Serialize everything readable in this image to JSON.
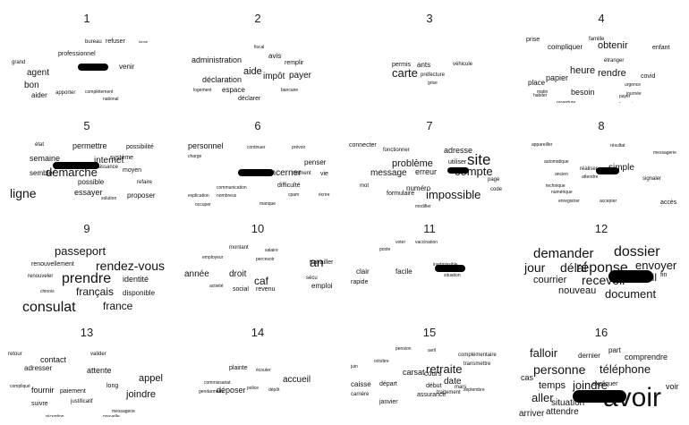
{
  "panels": [
    {
      "number": "1",
      "words": [
        {
          "t": "refuser",
          "s": 7
        },
        {
          "t": "bureau",
          "s": 6
        },
        {
          "t": "professionnel",
          "s": 7
        },
        {
          "t": "venir",
          "s": 8
        },
        {
          "t": "grand",
          "s": 6
        },
        {
          "t": "agent",
          "s": 10
        },
        {
          "t": "bon",
          "s": 10
        },
        {
          "t": "aider",
          "s": 8
        },
        {
          "t": "apporter",
          "s": 6
        },
        {
          "t": "complètement",
          "s": 5
        },
        {
          "t": "forme",
          "s": 4
        },
        {
          "t": "national",
          "s": 5
        }
      ]
    },
    {
      "number": "2",
      "words": [
        {
          "t": "administration",
          "s": 9
        },
        {
          "t": "avis",
          "s": 8
        },
        {
          "t": "remplir",
          "s": 7
        },
        {
          "t": "aide",
          "s": 11
        },
        {
          "t": "impôt",
          "s": 10
        },
        {
          "t": "payer",
          "s": 10
        },
        {
          "t": "déclaration",
          "s": 9
        },
        {
          "t": "espace",
          "s": 8
        },
        {
          "t": "déclarer",
          "s": 7
        },
        {
          "t": "logement",
          "s": 5
        },
        {
          "t": "bancaire",
          "s": 5
        },
        {
          "t": "fiscal",
          "s": 5
        }
      ]
    },
    {
      "number": "3",
      "words": [
        {
          "t": "permis",
          "s": 7
        },
        {
          "t": "ants",
          "s": 8
        },
        {
          "t": "véhicule",
          "s": 6
        },
        {
          "t": "carte",
          "s": 13
        },
        {
          "t": "préfecture",
          "s": 6
        },
        {
          "t": "grise",
          "s": 5
        }
      ]
    },
    {
      "number": "4",
      "words": [
        {
          "t": "prise",
          "s": 7
        },
        {
          "t": "famille",
          "s": 6
        },
        {
          "t": "compliquer",
          "s": 8
        },
        {
          "t": "obtenir",
          "s": 11
        },
        {
          "t": "enfant",
          "s": 7
        },
        {
          "t": "papier",
          "s": 9
        },
        {
          "t": "heure",
          "s": 11
        },
        {
          "t": "rendre",
          "s": 11
        },
        {
          "t": "covid",
          "s": 7
        },
        {
          "t": "place",
          "s": 8
        },
        {
          "t": "besoin",
          "s": 9
        },
        {
          "t": "urgence",
          "s": 5
        },
        {
          "t": "étranger",
          "s": 6
        },
        {
          "t": "payer",
          "s": 5
        },
        {
          "t": "journée",
          "s": 5
        },
        {
          "t": "ouverture",
          "s": 5
        },
        {
          "t": "matin",
          "s": 5
        },
        {
          "t": "habiter",
          "s": 5
        },
        {
          "t": "français",
          "s": 5
        }
      ]
    },
    {
      "number": "5",
      "words": [
        {
          "t": "état",
          "s": 6
        },
        {
          "t": "permettre",
          "s": 9
        },
        {
          "t": "possibilité",
          "s": 7
        },
        {
          "t": "semaine",
          "s": 9
        },
        {
          "t": "internet",
          "s": 10
        },
        {
          "t": "système",
          "s": 7
        },
        {
          "t": "démarche",
          "s": 13
        },
        {
          "t": "naissance",
          "s": 6
        },
        {
          "t": "moyen",
          "s": 7
        },
        {
          "t": "sembler",
          "s": 8
        },
        {
          "t": "ligne",
          "s": 14
        },
        {
          "t": "possible",
          "s": 8
        },
        {
          "t": "refaire",
          "s": 6
        },
        {
          "t": "essayer",
          "s": 9
        },
        {
          "t": "proposer",
          "s": 8
        },
        {
          "t": "solution",
          "s": 5
        }
      ]
    },
    {
      "number": "6",
      "words": [
        {
          "t": "personnel",
          "s": 9
        },
        {
          "t": "continuer",
          "s": 5
        },
        {
          "t": "prévoir",
          "s": 5
        },
        {
          "t": "penser",
          "s": 8
        },
        {
          "t": "concerner",
          "s": 10
        },
        {
          "t": "moment",
          "s": 6
        },
        {
          "t": "vie",
          "s": 7
        },
        {
          "t": "difficulté",
          "s": 7
        },
        {
          "t": "charge",
          "s": 5
        },
        {
          "t": "communication",
          "s": 5
        },
        {
          "t": "explication",
          "s": 5
        },
        {
          "t": "nombreux",
          "s": 5
        },
        {
          "t": "occuper",
          "s": 5
        },
        {
          "t": "cpam",
          "s": 5
        },
        {
          "t": "écrire",
          "s": 5
        },
        {
          "t": "manque",
          "s": 5
        }
      ]
    },
    {
      "number": "7",
      "words": [
        {
          "t": "connecter",
          "s": 7
        },
        {
          "t": "fonctionner",
          "s": 6
        },
        {
          "t": "adresse",
          "s": 9
        },
        {
          "t": "site",
          "s": 17
        },
        {
          "t": "problème",
          "s": 11
        },
        {
          "t": "utiliser",
          "s": 7
        },
        {
          "t": "message",
          "s": 10
        },
        {
          "t": "erreur",
          "s": 9
        },
        {
          "t": "compte",
          "s": 13
        },
        {
          "t": "mot",
          "s": 6
        },
        {
          "t": "numéro",
          "s": 8
        },
        {
          "t": "page",
          "s": 6
        },
        {
          "t": "formulaire",
          "s": 7
        },
        {
          "t": "impossible",
          "s": 13
        },
        {
          "t": "code",
          "s": 6
        },
        {
          "t": "modifier",
          "s": 5
        }
      ]
    },
    {
      "number": "8",
      "words": [
        {
          "t": "appareiller",
          "s": 5
        },
        {
          "t": "résultat",
          "s": 5
        },
        {
          "t": "messagerie",
          "s": 5
        },
        {
          "t": "réaliser",
          "s": 6
        },
        {
          "t": "simple",
          "s": 10
        },
        {
          "t": "ancien",
          "s": 5
        },
        {
          "t": "attendre",
          "s": 5
        },
        {
          "t": "signaler",
          "s": 6
        },
        {
          "t": "technique",
          "s": 5
        },
        {
          "t": "enregistrer",
          "s": 5
        },
        {
          "t": "accepter",
          "s": 5
        },
        {
          "t": "accès",
          "s": 7
        },
        {
          "t": "automatique",
          "s": 5
        },
        {
          "t": "numérique",
          "s": 5
        }
      ]
    },
    {
      "number": "9",
      "words": [
        {
          "t": "passeport",
          "s": 13
        },
        {
          "t": "renouvellement",
          "s": 7
        },
        {
          "t": "rendez-vous",
          "s": 14
        },
        {
          "t": "renouveler",
          "s": 6
        },
        {
          "t": "prendre",
          "s": 16
        },
        {
          "t": "identité",
          "s": 9
        },
        {
          "t": "français",
          "s": 12
        },
        {
          "t": "disponible",
          "s": 8
        },
        {
          "t": "chinois",
          "s": 5
        },
        {
          "t": "consulat",
          "s": 16
        },
        {
          "t": "france",
          "s": 12
        }
      ]
    },
    {
      "number": "10",
      "words": [
        {
          "t": "montant",
          "s": 6
        },
        {
          "t": "salaire",
          "s": 5
        },
        {
          "t": "an",
          "s": 14
        },
        {
          "t": "travailler",
          "s": 7
        },
        {
          "t": "employeur",
          "s": 5
        },
        {
          "t": "percevoir",
          "s": 5
        },
        {
          "t": "année",
          "s": 10
        },
        {
          "t": "droit",
          "s": 10
        },
        {
          "t": "caf",
          "s": 12
        },
        {
          "t": "sécu",
          "s": 6
        },
        {
          "t": "social",
          "s": 7
        },
        {
          "t": "revenu",
          "s": 7
        },
        {
          "t": "emploi",
          "s": 8
        },
        {
          "t": "activité",
          "s": 5
        }
      ]
    },
    {
      "number": "11",
      "words": [
        {
          "t": "voter",
          "s": 5
        },
        {
          "t": "vaccination",
          "s": 5
        },
        {
          "t": "poste",
          "s": 5
        },
        {
          "t": "inadmissible",
          "s": 5
        },
        {
          "t": "clair",
          "s": 8
        },
        {
          "t": "facile",
          "s": 8
        },
        {
          "t": "rapide",
          "s": 7
        },
        {
          "t": "situation",
          "s": 5
        }
      ]
    },
    {
      "number": "12",
      "words": [
        {
          "t": "demander",
          "s": 15
        },
        {
          "t": "dossier",
          "s": 16
        },
        {
          "t": "réponse",
          "s": 16
        },
        {
          "t": "envoyer",
          "s": 13
        },
        {
          "t": "jour",
          "s": 14
        },
        {
          "t": "délai",
          "s": 14
        },
        {
          "t": "courrier",
          "s": 11
        },
        {
          "t": "recevoir",
          "s": 14
        },
        {
          "t": "mail",
          "s": 12
        },
        {
          "t": "fin",
          "s": 7
        },
        {
          "t": "nouveau",
          "s": 11
        },
        {
          "t": "document",
          "s": 13
        }
      ]
    },
    {
      "number": "13",
      "words": [
        {
          "t": "retour",
          "s": 6
        },
        {
          "t": "contact",
          "s": 9
        },
        {
          "t": "valider",
          "s": 6
        },
        {
          "t": "adresser",
          "s": 8
        },
        {
          "t": "attente",
          "s": 9
        },
        {
          "t": "appel",
          "s": 11
        },
        {
          "t": "compliqué",
          "s": 5
        },
        {
          "t": "long",
          "s": 7
        },
        {
          "t": "fournir",
          "s": 9
        },
        {
          "t": "paiement",
          "s": 7
        },
        {
          "t": "joindre",
          "s": 11
        },
        {
          "t": "suivre",
          "s": 7
        },
        {
          "t": "justificatif",
          "s": 6
        },
        {
          "t": "réception",
          "s": 5
        },
        {
          "t": "nouvelle",
          "s": 5
        },
        {
          "t": "messagerie",
          "s": 5
        }
      ]
    },
    {
      "number": "14",
      "words": [
        {
          "t": "plainte",
          "s": 7
        },
        {
          "t": "écouter",
          "s": 5
        },
        {
          "t": "accueil",
          "s": 10
        },
        {
          "t": "commissariat",
          "s": 5
        },
        {
          "t": "gendarmerie",
          "s": 5
        },
        {
          "t": "déposer",
          "s": 9
        },
        {
          "t": "police",
          "s": 5
        },
        {
          "t": "dépôt",
          "s": 5
        }
      ]
    },
    {
      "number": "15",
      "words": [
        {
          "t": "pension",
          "s": 5
        },
        {
          "t": "avril",
          "s": 5
        },
        {
          "t": "complémentaire",
          "s": 6
        },
        {
          "t": "octobre",
          "s": 5
        },
        {
          "t": "retraite",
          "s": 13
        },
        {
          "t": "transmettre",
          "s": 6
        },
        {
          "t": "juin",
          "s": 5
        },
        {
          "t": "carsat",
          "s": 9
        },
        {
          "t": "cours",
          "s": 8
        },
        {
          "t": "date",
          "s": 10
        },
        {
          "t": "caisse",
          "s": 8
        },
        {
          "t": "départ",
          "s": 7
        },
        {
          "t": "début",
          "s": 7
        },
        {
          "t": "mars",
          "s": 6
        },
        {
          "t": "septembre",
          "s": 5
        },
        {
          "t": "carrière",
          "s": 6
        },
        {
          "t": "assurance",
          "s": 7
        },
        {
          "t": "janvier",
          "s": 7
        },
        {
          "t": "traitement",
          "s": 6
        }
      ]
    },
    {
      "number": "16",
      "words": [
        {
          "t": "falloir",
          "s": 13
        },
        {
          "t": "dernier",
          "s": 8
        },
        {
          "t": "part",
          "s": 8
        },
        {
          "t": "comprendre",
          "s": 9
        },
        {
          "t": "personne",
          "s": 14
        },
        {
          "t": "téléphone",
          "s": 13
        },
        {
          "t": "cas",
          "s": 9
        },
        {
          "t": "temps",
          "s": 11
        },
        {
          "t": "joindre",
          "s": 13
        },
        {
          "t": "expliquer",
          "s": 7
        },
        {
          "t": "voir",
          "s": 9
        },
        {
          "t": "aller",
          "s": 13
        },
        {
          "t": "avoir",
          "s": 30
        },
        {
          "t": "situation",
          "s": 10
        },
        {
          "t": "arriver",
          "s": 10
        },
        {
          "t": "attendre",
          "s": 10
        }
      ]
    }
  ]
}
